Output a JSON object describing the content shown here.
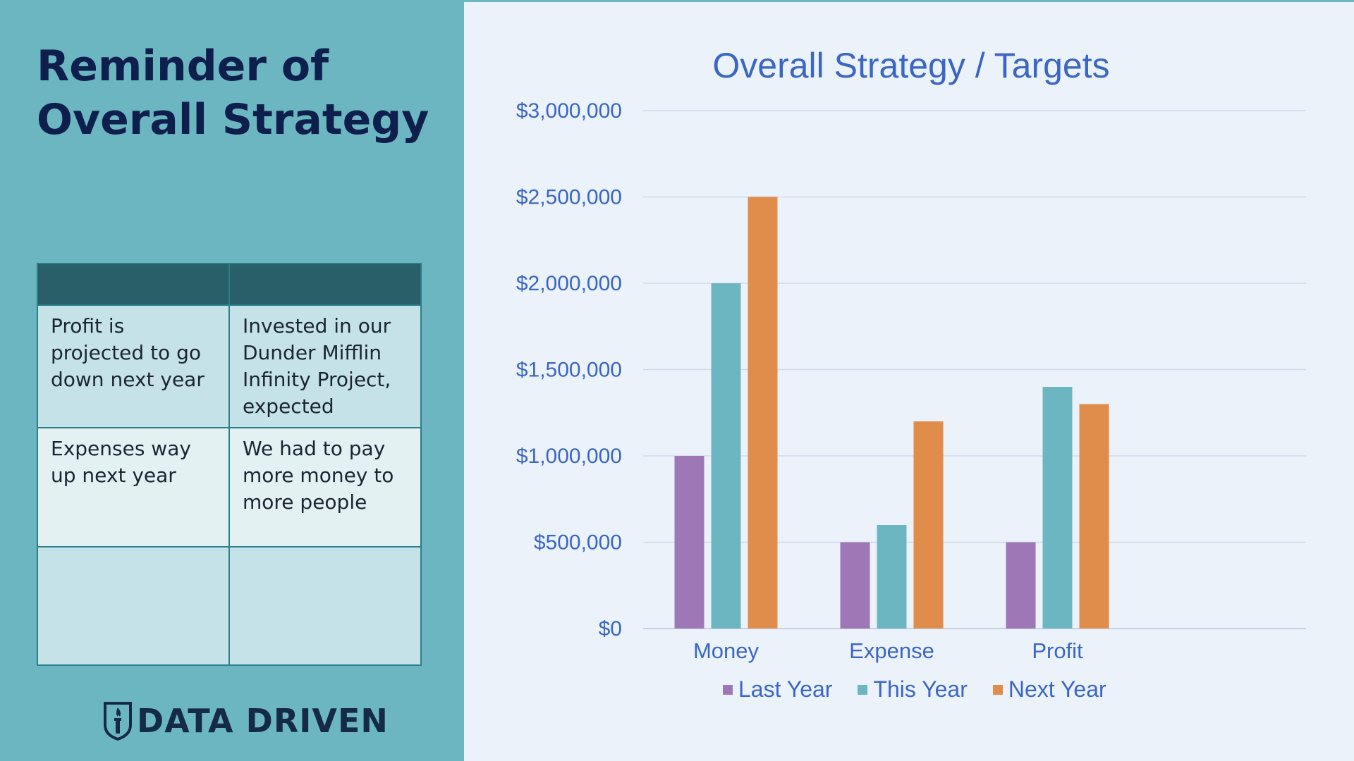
{
  "slide": {
    "title_lines": [
      "Reminder of",
      "Overall Strategy"
    ],
    "logo_text": "DATA DRIVEN"
  },
  "notes_table": {
    "headers": [
      "",
      ""
    ],
    "rows": [
      [
        "Profit is projected to go down next year",
        "Invested in our Dunder Mifflin Infinity Project, expected"
      ],
      [
        "Expenses way up next year",
        "We had to pay more money to more people"
      ],
      [
        "",
        ""
      ]
    ]
  },
  "colors": {
    "left_panel": "#6cb6c2",
    "table_header": "#285f69",
    "last_year": "#9e78b6",
    "this_year": "#6cb6c2",
    "next_year": "#e08c4a",
    "chart_text": "#3a66c4"
  },
  "chart_data": {
    "type": "bar",
    "title": "Overall Strategy / Targets",
    "categories": [
      "Money",
      "Expense",
      "Profit"
    ],
    "series": [
      {
        "name": "Last Year",
        "values": [
          1000000,
          500000,
          500000
        ]
      },
      {
        "name": "This Year",
        "values": [
          2000000,
          600000,
          1400000
        ]
      },
      {
        "name": "Next Year",
        "values": [
          2500000,
          1200000,
          1300000
        ]
      }
    ],
    "y_ticks": [
      "$0",
      "$500,000",
      "$1,000,000",
      "$1,500,000",
      "$2,000,000",
      "$2,500,000",
      "$3,000,000"
    ],
    "ylim": [
      0,
      3000000
    ],
    "grid": true,
    "legend_position": "bottom"
  }
}
